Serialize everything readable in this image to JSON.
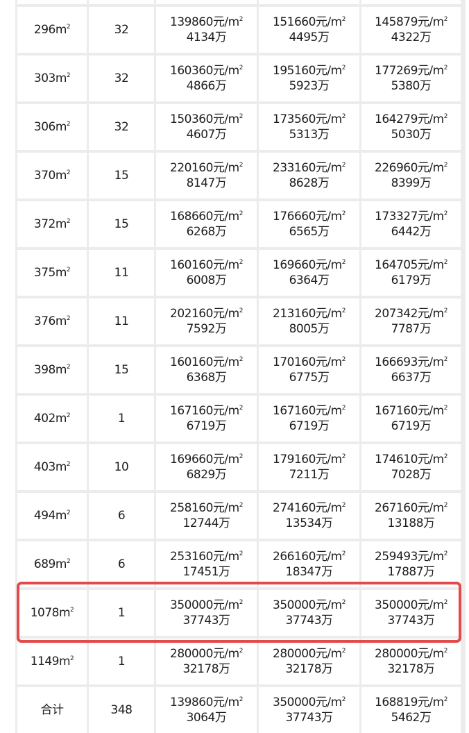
{
  "unit_area": "m",
  "unit_price": "元/m",
  "unit_total": "万",
  "highlight_color": "#e34b4b",
  "rows": [
    {
      "area": "",
      "count": "",
      "min_price": "",
      "min_total": "",
      "max_price": "",
      "max_total": "",
      "avg_price": "",
      "avg_total": ""
    },
    {
      "area": "296",
      "count": "32",
      "min_price": "139860",
      "min_total": "4134",
      "max_price": "151660",
      "max_total": "4495",
      "avg_price": "145879",
      "avg_total": "4322"
    },
    {
      "area": "303",
      "count": "32",
      "min_price": "160360",
      "min_total": "4866",
      "max_price": "195160",
      "max_total": "5923",
      "avg_price": "177269",
      "avg_total": "5380"
    },
    {
      "area": "306",
      "count": "32",
      "min_price": "150360",
      "min_total": "4607",
      "max_price": "173560",
      "max_total": "5313",
      "avg_price": "164279",
      "avg_total": "5030"
    },
    {
      "area": "370",
      "count": "15",
      "min_price": "220160",
      "min_total": "8147",
      "max_price": "233160",
      "max_total": "8628",
      "avg_price": "226960",
      "avg_total": "8399"
    },
    {
      "area": "372",
      "count": "15",
      "min_price": "168660",
      "min_total": "6268",
      "max_price": "176660",
      "max_total": "6565",
      "avg_price": "173327",
      "avg_total": "6442"
    },
    {
      "area": "375",
      "count": "11",
      "min_price": "160160",
      "min_total": "6008",
      "max_price": "169660",
      "max_total": "6364",
      "avg_price": "164705",
      "avg_total": "6179"
    },
    {
      "area": "376",
      "count": "11",
      "min_price": "202160",
      "min_total": "7592",
      "max_price": "213160",
      "max_total": "8005",
      "avg_price": "207342",
      "avg_total": "7787"
    },
    {
      "area": "398",
      "count": "15",
      "min_price": "160160",
      "min_total": "6368",
      "max_price": "170160",
      "max_total": "6775",
      "avg_price": "166693",
      "avg_total": "6637"
    },
    {
      "area": "402",
      "count": "1",
      "min_price": "167160",
      "min_total": "6719",
      "max_price": "167160",
      "max_total": "6719",
      "avg_price": "167160",
      "avg_total": "6719"
    },
    {
      "area": "403",
      "count": "10",
      "min_price": "169660",
      "min_total": "6829",
      "max_price": "179160",
      "max_total": "7211",
      "avg_price": "174610",
      "avg_total": "7028"
    },
    {
      "area": "494",
      "count": "6",
      "min_price": "258160",
      "min_total": "12744",
      "max_price": "274160",
      "max_total": "13534",
      "avg_price": "267160",
      "avg_total": "13188"
    },
    {
      "area": "689",
      "count": "6",
      "min_price": "253160",
      "min_total": "17451",
      "max_price": "266160",
      "max_total": "18347",
      "avg_price": "259493",
      "avg_total": "17887"
    },
    {
      "area": "1078",
      "count": "1",
      "min_price": "350000",
      "min_total": "37743",
      "max_price": "350000",
      "max_total": "37743",
      "avg_price": "350000",
      "avg_total": "37743",
      "highlighted": true
    },
    {
      "area": "1149",
      "count": "1",
      "min_price": "280000",
      "min_total": "32178",
      "max_price": "280000",
      "max_total": "32178",
      "avg_price": "280000",
      "avg_total": "32178"
    }
  ],
  "total": {
    "label": "合计",
    "count": "348",
    "min_price": "139860",
    "min_total": "3064",
    "max_price": "350000",
    "max_total": "37743",
    "avg_price": "168819",
    "avg_total": "5462"
  }
}
